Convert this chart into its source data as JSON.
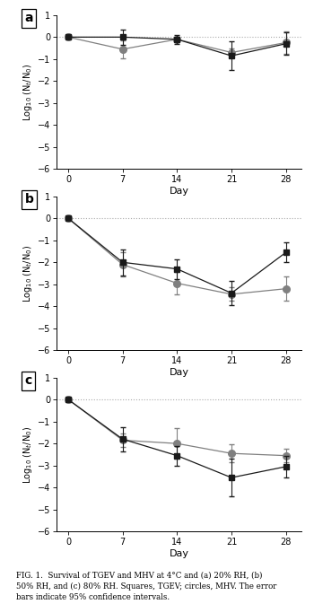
{
  "days": [
    0,
    7,
    14,
    21,
    28
  ],
  "panels": [
    {
      "label": "a",
      "tgev_y": [
        0.0,
        0.0,
        -0.1,
        -0.85,
        -0.3
      ],
      "tgev_err": [
        0.05,
        0.35,
        0.2,
        0.65,
        0.5
      ],
      "mhv_y": [
        0.0,
        -0.55,
        -0.1,
        -0.7,
        -0.25
      ],
      "mhv_err": [
        0.05,
        0.4,
        0.1,
        0.2,
        0.5
      ]
    },
    {
      "label": "b",
      "tgev_y": [
        0.0,
        -2.0,
        -2.3,
        -3.4,
        -1.55
      ],
      "tgev_err": [
        0.05,
        0.6,
        0.45,
        0.55,
        0.45
      ],
      "mhv_y": [
        0.0,
        -2.1,
        -2.95,
        -3.45,
        -3.2
      ],
      "mhv_err": [
        0.05,
        0.55,
        0.5,
        0.3,
        0.55
      ]
    },
    {
      "label": "c",
      "tgev_y": [
        0.0,
        -1.8,
        -2.55,
        -3.55,
        -3.05
      ],
      "tgev_err": [
        0.05,
        0.55,
        0.45,
        0.85,
        0.5
      ],
      "mhv_y": [
        0.0,
        -1.85,
        -2.0,
        -2.45,
        -2.55
      ],
      "mhv_err": [
        0.05,
        0.3,
        0.7,
        0.4,
        0.3
      ]
    }
  ],
  "ylim": [
    -6,
    1
  ],
  "yticks": [
    1,
    0,
    -1,
    -2,
    -3,
    -4,
    -5,
    -6
  ],
  "xticks": [
    0,
    7,
    14,
    21,
    28
  ],
  "ylabel": "Log$_{10}$ (N$_t$/N$_0$)",
  "xlabel": "Day",
  "tgev_color": "#1a1a1a",
  "mhv_color": "#808080",
  "caption": "FIG. 1.  Survival of TGEV and MHV at 4°C and (a) 20% RH, (b)\n50% RH, and (c) 80% RH. Squares, TGEV; circles, MHV. The error\nbars indicate 95% confidence intervals."
}
